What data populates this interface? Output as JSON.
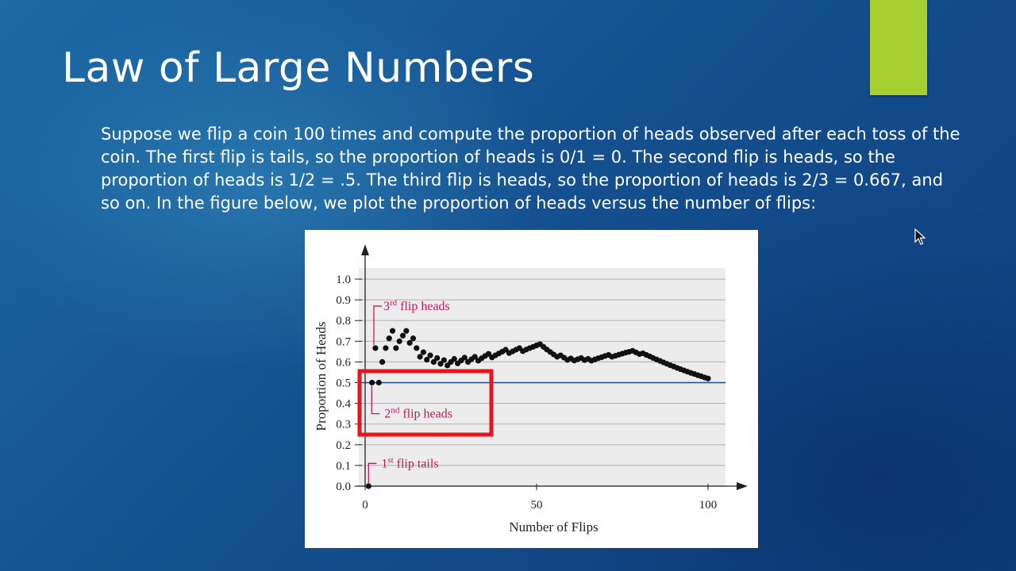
{
  "slide": {
    "title": "Law of Large Numbers",
    "body": "Suppose we flip a coin 100 times and compute the proportion of heads observed after each toss of the coin.  The first flip is tails, so the proportion of heads is 0/1 = 0.  The second flip is heads, so the proportion of heads is 1/2 = .5.  The third flip is heads, so the proportion of heads is 2/3 = 0.667, and so on.  In the figure below, we plot the proportion of heads versus the number of flips:",
    "accent_color": "#a6cf2f",
    "highlight_color": "#e8141b",
    "annotation_color": "#c2185b"
  },
  "chart_data": {
    "type": "scatter",
    "xlabel": "Number of Flips",
    "ylabel": "Proportion of Heads",
    "xlim": [
      0,
      100
    ],
    "ylim": [
      0,
      1.0
    ],
    "xticks": [
      0,
      50,
      100
    ],
    "yticks": [
      0.0,
      0.1,
      0.2,
      0.3,
      0.4,
      0.5,
      0.6,
      0.7,
      0.8,
      0.9,
      1.0
    ],
    "reference_line": 0.5,
    "grid": true,
    "series": [
      {
        "x": [
          1,
          2,
          3,
          4,
          5,
          6,
          7,
          8,
          9,
          10,
          11,
          12,
          13,
          14,
          15,
          16,
          17,
          18,
          19,
          20,
          21,
          22,
          23,
          24,
          25,
          26,
          27,
          28,
          29,
          30,
          31,
          32,
          33,
          34,
          35,
          36,
          37,
          38,
          39,
          40,
          41,
          42,
          43,
          44,
          45,
          46,
          47,
          48,
          49,
          50,
          51,
          52,
          53,
          54,
          55,
          56,
          57,
          58,
          59,
          60,
          61,
          62,
          63,
          64,
          65,
          66,
          67,
          68,
          69,
          70,
          71,
          72,
          73,
          74,
          75,
          76,
          77,
          78,
          79,
          80,
          81,
          82,
          83,
          84,
          85,
          86,
          87,
          88,
          89,
          90,
          91,
          92,
          93,
          94,
          95,
          96,
          97,
          98,
          99,
          100
        ],
        "y": [
          0.0,
          0.5,
          0.667,
          0.5,
          0.6,
          0.667,
          0.714,
          0.75,
          0.667,
          0.7,
          0.727,
          0.75,
          0.692,
          0.714,
          0.667,
          0.625,
          0.647,
          0.611,
          0.632,
          0.6,
          0.619,
          0.591,
          0.609,
          0.583,
          0.6,
          0.615,
          0.593,
          0.607,
          0.621,
          0.6,
          0.613,
          0.625,
          0.606,
          0.618,
          0.629,
          0.639,
          0.622,
          0.632,
          0.641,
          0.65,
          0.659,
          0.643,
          0.651,
          0.659,
          0.667,
          0.652,
          0.66,
          0.667,
          0.673,
          0.68,
          0.686,
          0.673,
          0.66,
          0.648,
          0.636,
          0.625,
          0.632,
          0.621,
          0.61,
          0.617,
          0.607,
          0.613,
          0.619,
          0.609,
          0.615,
          0.606,
          0.612,
          0.618,
          0.623,
          0.629,
          0.634,
          0.625,
          0.63,
          0.635,
          0.64,
          0.645,
          0.649,
          0.654,
          0.646,
          0.638,
          0.642,
          0.634,
          0.627,
          0.619,
          0.612,
          0.605,
          0.598,
          0.591,
          0.584,
          0.578,
          0.571,
          0.565,
          0.559,
          0.553,
          0.547,
          0.542,
          0.536,
          0.531,
          0.525,
          0.52
        ]
      }
    ],
    "annotations": [
      {
        "text": "1",
        "sup": "st",
        "rest": " flip tails"
      },
      {
        "text": "2",
        "sup": "nd",
        "rest": " flip heads"
      },
      {
        "text": "3",
        "sup": "rd",
        "rest": " flip heads"
      }
    ]
  }
}
